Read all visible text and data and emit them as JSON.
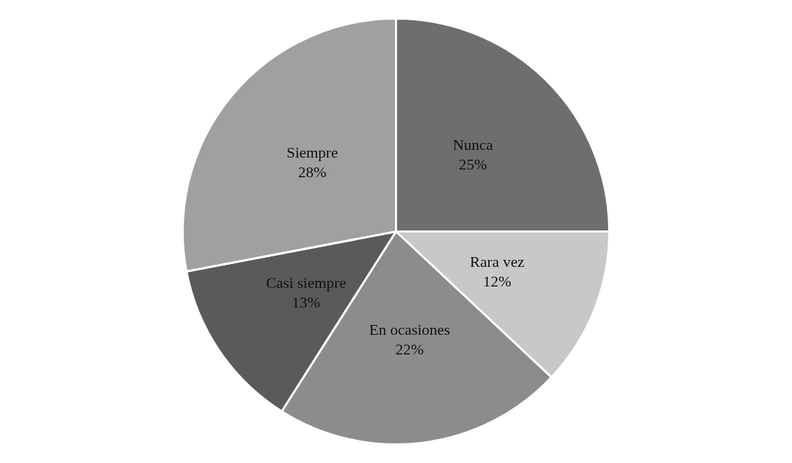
{
  "chart_data": {
    "type": "pie",
    "categories": [
      "Nunca",
      "Rara vez",
      "En ocasiones",
      "Casi siempre",
      "Siempre"
    ],
    "values": [
      25,
      12,
      22,
      13,
      28
    ],
    "colors": [
      "#6e6e6e",
      "#c8c8c8",
      "#8c8c8c",
      "#5a5a5a",
      "#a0a0a0"
    ],
    "value_labels": [
      "25%",
      "12%",
      "22%",
      "13%",
      "28%"
    ],
    "legend": false
  }
}
